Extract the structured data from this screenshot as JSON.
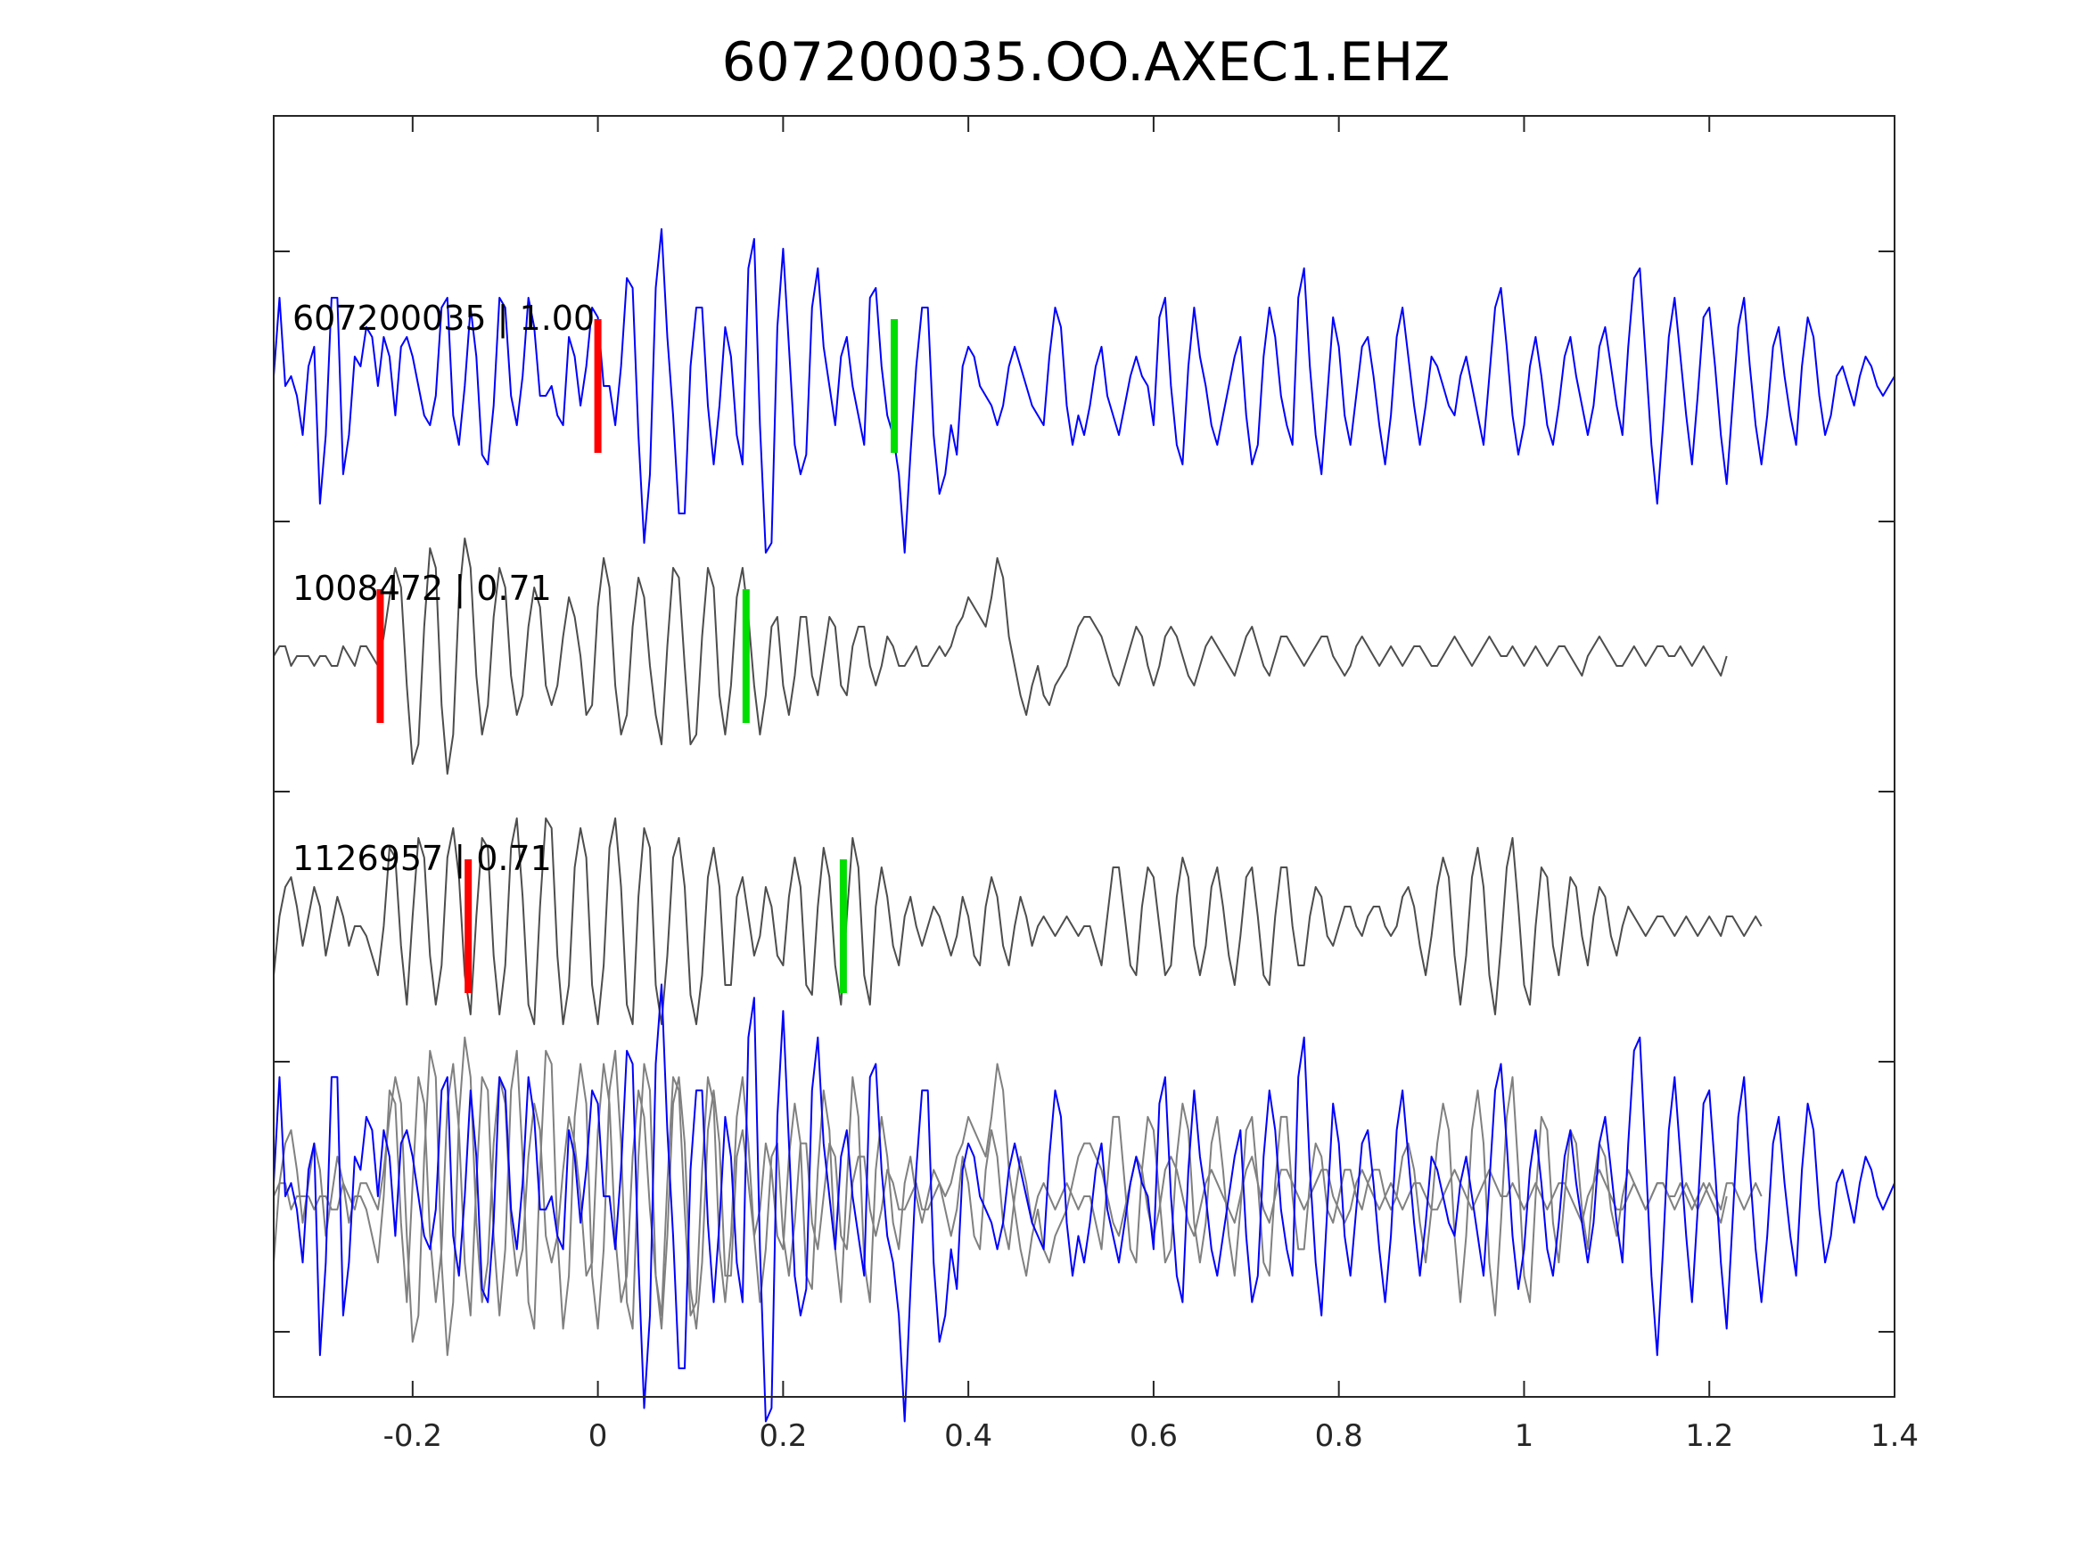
{
  "chart_data": {
    "type": "line",
    "title": "607200035.OO.AXEC1.EHZ",
    "xlabel": "",
    "ylabel": "",
    "xlim": [
      -0.35,
      1.4
    ],
    "xticks": [
      -0.2,
      0,
      0.2,
      0.4,
      0.6,
      0.8,
      1,
      1.2,
      1.4
    ],
    "xtick_labels": [
      "-0.2",
      "0",
      "0.2",
      "0.4",
      "0.6",
      "0.8",
      "1",
      "1.2",
      "1.4"
    ],
    "grid": false,
    "legend": "none",
    "colors": {
      "primary": "#0000ff",
      "secondary": "#4d4d4d",
      "overlay": "#808080",
      "p_pick": "#ff0000",
      "s_pick": "#00dd00",
      "axis": "#262626"
    },
    "series": [
      {
        "name": "607200035 | 1.00",
        "label": "607200035 | 1.00",
        "color": "#0000ff",
        "p_pick": 0.0,
        "s_pick": 0.32,
        "x_start": -0.35,
        "dt": 0.00625,
        "values": [
          0.1,
          0.9,
          0.0,
          0.1,
          -0.1,
          -0.5,
          0.2,
          0.4,
          -1.2,
          -0.5,
          0.9,
          0.9,
          -0.9,
          -0.5,
          0.3,
          0.2,
          0.6,
          0.5,
          0.0,
          0.5,
          0.3,
          -0.3,
          0.4,
          0.5,
          0.3,
          0.0,
          -0.3,
          -0.4,
          -0.1,
          0.8,
          0.9,
          -0.3,
          -0.6,
          0.0,
          0.8,
          0.3,
          -0.7,
          -0.8,
          -0.2,
          0.9,
          0.8,
          -0.1,
          -0.4,
          0.1,
          0.9,
          0.6,
          -0.1,
          -0.1,
          0.0,
          -0.3,
          -0.4,
          0.5,
          0.3,
          -0.2,
          0.2,
          0.8,
          0.7,
          0.0,
          0.0,
          -0.4,
          0.2,
          1.1,
          1.0,
          -0.5,
          -1.6,
          -0.9,
          1.0,
          1.6,
          0.5,
          -0.3,
          -1.3,
          -1.3,
          0.2,
          0.8,
          0.8,
          -0.2,
          -0.8,
          -0.2,
          0.6,
          0.3,
          -0.5,
          -0.8,
          1.2,
          1.5,
          -0.4,
          -1.7,
          -1.6,
          0.6,
          1.4,
          0.4,
          -0.6,
          -0.9,
          -0.7,
          0.8,
          1.2,
          0.4,
          0.0,
          -0.4,
          0.3,
          0.5,
          0.0,
          -0.3,
          -0.6,
          0.9,
          1.0,
          0.2,
          -0.3,
          -0.5,
          -0.9,
          -1.7,
          -0.7,
          0.2,
          0.8,
          0.8,
          -0.5,
          -1.1,
          -0.9,
          -0.4,
          -0.7,
          0.2,
          0.4,
          0.3,
          0.0,
          -0.1,
          -0.2,
          -0.4,
          -0.2,
          0.2,
          0.4,
          0.2,
          0.0,
          -0.2,
          -0.3,
          -0.4,
          0.3,
          0.8,
          0.6,
          -0.2,
          -0.6,
          -0.3,
          -0.5,
          -0.2,
          0.2,
          0.4,
          -0.1,
          -0.3,
          -0.5,
          -0.2,
          0.1,
          0.3,
          0.1,
          0.0,
          -0.4,
          0.7,
          0.9,
          0.0,
          -0.6,
          -0.8,
          0.2,
          0.8,
          0.3,
          0.0,
          -0.4,
          -0.6,
          -0.3,
          0.0,
          0.3,
          0.5,
          -0.3,
          -0.8,
          -0.6,
          0.3,
          0.8,
          0.5,
          -0.1,
          -0.4,
          -0.6,
          0.9,
          1.2,
          0.2,
          -0.5,
          -0.9,
          -0.1,
          0.7,
          0.4,
          -0.3,
          -0.6,
          -0.1,
          0.4,
          0.5,
          0.1,
          -0.4,
          -0.8,
          -0.3,
          0.5,
          0.8,
          0.3,
          -0.2,
          -0.6,
          -0.2,
          0.3,
          0.2,
          0.0,
          -0.2,
          -0.3,
          0.1,
          0.3,
          0.0,
          -0.3,
          -0.6,
          0.1,
          0.8,
          1.0,
          0.4,
          -0.3,
          -0.7,
          -0.4,
          0.2,
          0.5,
          0.1,
          -0.4,
          -0.6,
          -0.2,
          0.3,
          0.5,
          0.1,
          -0.2,
          -0.5,
          -0.2,
          0.4,
          0.6,
          0.2,
          -0.2,
          -0.5,
          0.4,
          1.1,
          1.2,
          0.3,
          -0.6,
          -1.2,
          -0.4,
          0.5,
          0.9,
          0.3,
          -0.3,
          -0.8,
          -0.1,
          0.7,
          0.8,
          0.2,
          -0.5,
          -1.0,
          -0.2,
          0.6,
          0.9,
          0.2,
          -0.4,
          -0.8,
          -0.3,
          0.4,
          0.6,
          0.1,
          -0.3,
          -0.6,
          0.2,
          0.7,
          0.5,
          -0.1,
          -0.5,
          -0.3,
          0.1,
          0.2,
          0.0,
          -0.2,
          0.1,
          0.3,
          0.2,
          0.0,
          -0.1,
          0.0,
          0.1,
          0.0
        ]
      },
      {
        "name": "1008472 | 0.71",
        "label": "1008472 | 0.71",
        "color": "#4d4d4d",
        "p_pick": -0.235,
        "s_pick": 0.16,
        "x_start": -0.35,
        "dt": 0.00625,
        "values": [
          0.0,
          0.1,
          0.1,
          -0.1,
          0.0,
          0.0,
          0.0,
          -0.1,
          0.0,
          0.0,
          -0.1,
          -0.1,
          0.1,
          0.0,
          -0.1,
          0.1,
          0.1,
          0.0,
          -0.1,
          0.2,
          0.6,
          0.9,
          0.7,
          -0.3,
          -1.1,
          -0.9,
          0.3,
          1.1,
          0.9,
          -0.5,
          -1.2,
          -0.8,
          0.6,
          1.2,
          0.9,
          -0.2,
          -0.8,
          -0.5,
          0.4,
          0.9,
          0.7,
          -0.2,
          -0.6,
          -0.4,
          0.3,
          0.7,
          0.5,
          -0.3,
          -0.5,
          -0.3,
          0.2,
          0.6,
          0.4,
          0.0,
          -0.6,
          -0.5,
          0.5,
          1.0,
          0.7,
          -0.3,
          -0.8,
          -0.6,
          0.3,
          0.8,
          0.6,
          -0.1,
          -0.6,
          -0.9,
          0.1,
          0.9,
          0.8,
          -0.1,
          -0.9,
          -0.8,
          0.2,
          0.9,
          0.7,
          -0.4,
          -0.8,
          -0.3,
          0.6,
          0.9,
          0.4,
          -0.3,
          -0.8,
          -0.4,
          0.3,
          0.4,
          -0.3,
          -0.6,
          -0.2,
          0.4,
          0.4,
          -0.2,
          -0.4,
          0.0,
          0.4,
          0.3,
          -0.3,
          -0.4,
          0.1,
          0.3,
          0.3,
          -0.1,
          -0.3,
          -0.1,
          0.2,
          0.1,
          -0.1,
          -0.1,
          0.0,
          0.1,
          -0.1,
          -0.1,
          0.0,
          0.1,
          0.0,
          0.1,
          0.3,
          0.4,
          0.6,
          0.5,
          0.4,
          0.3,
          0.6,
          1.0,
          0.8,
          0.2,
          -0.1,
          -0.4,
          -0.6,
          -0.3,
          -0.1,
          -0.4,
          -0.5,
          -0.3,
          -0.2,
          -0.1,
          0.1,
          0.3,
          0.4,
          0.4,
          0.3,
          0.2,
          0.0,
          -0.2,
          -0.3,
          -0.1,
          0.1,
          0.3,
          0.2,
          -0.1,
          -0.3,
          -0.1,
          0.2,
          0.3,
          0.2,
          0.0,
          -0.2,
          -0.3,
          -0.1,
          0.1,
          0.2,
          0.1,
          0.0,
          -0.1,
          -0.2,
          0.0,
          0.2,
          0.3,
          0.1,
          -0.1,
          -0.2,
          0.0,
          0.2,
          0.2,
          0.1,
          0.0,
          -0.1,
          0.0,
          0.1,
          0.2,
          0.2,
          0.0,
          -0.1,
          -0.2,
          -0.1,
          0.1,
          0.2,
          0.1,
          0.0,
          -0.1,
          0.0,
          0.1,
          0.0,
          -0.1,
          0.0,
          0.1,
          0.1,
          0.0,
          -0.1,
          -0.1,
          0.0,
          0.1,
          0.2,
          0.1,
          0.0,
          -0.1,
          0.0,
          0.1,
          0.2,
          0.1,
          0.0,
          0.0,
          0.1,
          0.0,
          -0.1,
          0.0,
          0.1,
          0.0,
          -0.1,
          0.0,
          0.1,
          0.1,
          0.0,
          -0.1,
          -0.2,
          0.0,
          0.1,
          0.2,
          0.1,
          0.0,
          -0.1,
          -0.1,
          0.0,
          0.1,
          0.0,
          -0.1,
          0.0,
          0.1,
          0.1,
          0.0,
          0.0,
          0.1,
          0.0,
          -0.1,
          0.0,
          0.1,
          0.0,
          -0.1,
          -0.2,
          0.0
        ]
      },
      {
        "name": "1126957 | 0.71",
        "label": "1126957 | 0.71",
        "color": "#4d4d4d",
        "p_pick": -0.14,
        "s_pick": 0.265,
        "x_start": -0.35,
        "dt": 0.00625,
        "values": [
          -0.5,
          0.1,
          0.4,
          0.5,
          0.2,
          -0.2,
          0.1,
          0.4,
          0.2,
          -0.3,
          0.0,
          0.3,
          0.1,
          -0.2,
          0.0,
          0.0,
          -0.1,
          -0.3,
          -0.5,
          0.0,
          0.8,
          0.7,
          -0.2,
          -0.8,
          0.1,
          0.9,
          0.7,
          -0.3,
          -0.8,
          -0.4,
          0.7,
          1.0,
          0.5,
          -0.5,
          -0.9,
          0.1,
          0.9,
          0.8,
          -0.3,
          -0.9,
          -0.4,
          0.8,
          1.1,
          0.3,
          -0.8,
          -1.0,
          0.2,
          1.1,
          1.0,
          -0.3,
          -1.0,
          -0.6,
          0.6,
          1.0,
          0.7,
          -0.6,
          -1.0,
          -0.4,
          0.8,
          1.1,
          0.4,
          -0.8,
          -1.0,
          0.3,
          1.0,
          0.8,
          -0.6,
          -1.0,
          -0.3,
          0.7,
          0.9,
          0.4,
          -0.7,
          -1.0,
          -0.5,
          0.5,
          0.8,
          0.4,
          -0.6,
          -0.6,
          0.3,
          0.5,
          0.1,
          -0.3,
          -0.1,
          0.4,
          0.2,
          -0.3,
          -0.4,
          0.3,
          0.7,
          0.4,
          -0.6,
          -0.7,
          0.2,
          0.8,
          0.5,
          -0.4,
          -0.8,
          0.1,
          0.9,
          0.6,
          -0.5,
          -0.8,
          0.2,
          0.6,
          0.3,
          -0.2,
          -0.4,
          0.1,
          0.3,
          0.0,
          -0.2,
          0.0,
          0.2,
          0.1,
          -0.1,
          -0.3,
          -0.1,
          0.3,
          0.1,
          -0.3,
          -0.4,
          0.2,
          0.5,
          0.3,
          -0.2,
          -0.4,
          0.0,
          0.3,
          0.1,
          -0.2,
          0.0,
          0.1,
          0.0,
          -0.1,
          0.0,
          0.1,
          0.0,
          -0.1,
          0.0,
          0.0,
          -0.2,
          -0.4,
          0.1,
          0.6,
          0.6,
          0.1,
          -0.4,
          -0.5,
          0.2,
          0.6,
          0.5,
          0.0,
          -0.5,
          -0.4,
          0.3,
          0.7,
          0.5,
          -0.2,
          -0.5,
          -0.2,
          0.4,
          0.6,
          0.2,
          -0.3,
          -0.6,
          -0.1,
          0.5,
          0.6,
          0.1,
          -0.5,
          -0.6,
          0.1,
          0.6,
          0.6,
          0.0,
          -0.4,
          -0.4,
          0.1,
          0.4,
          0.3,
          -0.1,
          -0.2,
          0.0,
          0.2,
          0.2,
          0.0,
          -0.1,
          0.1,
          0.2,
          0.2,
          0.0,
          -0.1,
          0.0,
          0.3,
          0.4,
          0.2,
          -0.2,
          -0.5,
          -0.1,
          0.4,
          0.7,
          0.5,
          -0.3,
          -0.8,
          -0.3,
          0.5,
          0.8,
          0.4,
          -0.5,
          -0.9,
          -0.2,
          0.6,
          0.9,
          0.2,
          -0.6,
          -0.8,
          0.0,
          0.6,
          0.5,
          -0.2,
          -0.5,
          0.0,
          0.5,
          0.4,
          -0.1,
          -0.4,
          0.1,
          0.4,
          0.3,
          -0.1,
          -0.3,
          0.0,
          0.2,
          0.1,
          0.0,
          -0.1,
          0.0,
          0.1,
          0.1,
          0.0,
          -0.1,
          0.0,
          0.1,
          0.0,
          -0.1,
          0.0,
          0.1,
          0.0,
          -0.1,
          0.1,
          0.1,
          0.0,
          -0.1,
          0.0,
          0.1,
          0.0
        ]
      }
    ],
    "overlay_row": {
      "label": "",
      "includes": [
        "607200035 | 1.00",
        "1008472 | 0.71",
        "1126957 | 0.71"
      ]
    }
  }
}
